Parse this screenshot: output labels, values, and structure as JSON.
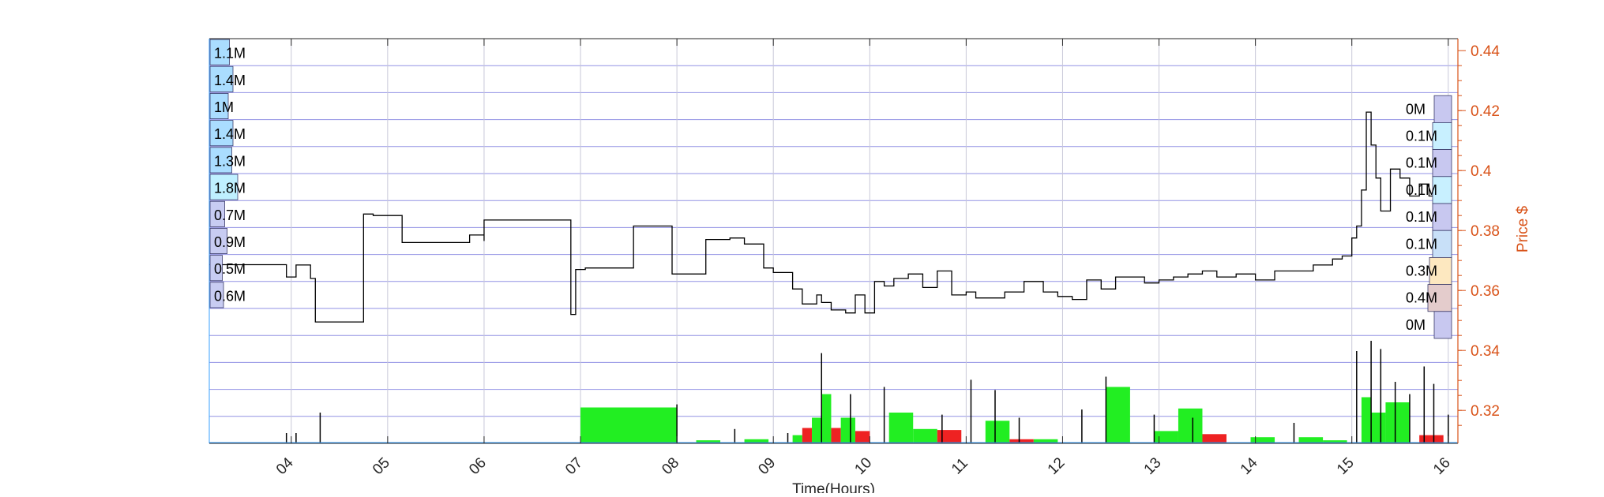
{
  "chart_data": {
    "type": "bar",
    "xlabel": "Time(Hours)",
    "ylabel": "Price $",
    "x_ticks": [
      "04",
      "05",
      "06",
      "07",
      "08",
      "09",
      "10",
      "11",
      "12",
      "13",
      "14",
      "15",
      "16"
    ],
    "xlim": [
      3.15,
      16.1
    ],
    "y_ticks": [
      0.32,
      0.34,
      0.36,
      0.38,
      0.4,
      0.42,
      0.44
    ],
    "ylim": [
      0.309,
      0.444
    ],
    "grid": true,
    "colors": {
      "price": "#000000",
      "up_volume": "#22ee22",
      "down_volume": "#ee2222",
      "price_axis": "#d95319",
      "grid_line": "#8080e0",
      "left_profile": "#aaddff",
      "right_profile": "#c8c8f0"
    },
    "left_volume_profile": {
      "labels": [
        "1.1M",
        "1.4M",
        "1M",
        "1.4M",
        "1.3M",
        "1.8M",
        "0.7M",
        "0.9M",
        "0.5M",
        "0.6M"
      ],
      "values": [
        1.1,
        1.4,
        1.0,
        1.4,
        1.3,
        1.8,
        0.7,
        0.9,
        0.5,
        0.6
      ]
    },
    "right_volume_profile": {
      "labels": [
        "0M",
        "0.1M",
        "0.1M",
        "0.1M",
        "0.1M",
        "0.1M",
        "0.3M",
        "0.4M",
        "0M"
      ],
      "values": [
        0.0,
        0.1,
        0.1,
        0.1,
        0.1,
        0.1,
        0.3,
        0.4,
        0.0
      ],
      "price_from": [
        0.416,
        0.407,
        0.398,
        0.389,
        0.38,
        0.371,
        0.362,
        0.353,
        0.344
      ],
      "price_to": [
        0.425,
        0.416,
        0.407,
        0.398,
        0.389,
        0.38,
        0.371,
        0.362,
        0.353
      ]
    },
    "price_series": {
      "x": [
        3.15,
        3.95,
        3.95,
        4.05,
        4.05,
        4.2,
        4.25,
        4.3,
        4.3,
        4.75,
        4.75,
        4.85,
        4.85,
        5.15,
        5.15,
        5.7,
        5.85,
        6.0,
        6.0,
        6.85,
        6.9,
        6.95,
        7.05,
        7.3,
        7.35,
        7.55,
        7.55,
        7.95,
        7.95,
        8.3,
        8.55,
        8.7,
        8.9,
        9.0,
        9.2,
        9.3,
        9.45,
        9.5,
        9.6,
        9.75,
        9.85,
        9.95,
        10.05,
        10.15,
        10.25,
        10.4,
        10.55,
        10.7,
        10.85,
        11.0,
        11.1,
        11.2,
        11.4,
        11.6,
        11.8,
        11.95,
        12.1,
        12.25,
        12.4,
        12.55,
        12.7,
        12.85,
        13.0,
        13.15,
        13.3,
        13.45,
        13.6,
        13.8,
        14.0,
        14.2,
        14.4,
        14.6,
        14.8,
        14.9,
        15.0,
        15.05,
        15.1,
        15.15,
        15.2,
        15.25,
        15.3,
        15.4,
        15.5,
        15.6,
        15.7,
        15.8,
        15.85,
        15.9
      ],
      "y": [
        0.3686,
        0.3686,
        0.3645,
        0.3645,
        0.3685,
        0.364,
        0.3495,
        0.3495,
        0.3495,
        0.3495,
        0.3855,
        0.3855,
        0.385,
        0.376,
        0.376,
        0.376,
        0.3785,
        0.3765,
        0.3835,
        0.3835,
        0.352,
        0.367,
        0.3675,
        0.3675,
        0.3675,
        0.3675,
        0.3815,
        0.3815,
        0.3655,
        0.377,
        0.3775,
        0.3755,
        0.3675,
        0.366,
        0.3605,
        0.3555,
        0.3585,
        0.356,
        0.3535,
        0.3525,
        0.3585,
        0.3525,
        0.363,
        0.3615,
        0.364,
        0.3655,
        0.361,
        0.3665,
        0.3585,
        0.3595,
        0.3575,
        0.3575,
        0.3595,
        0.363,
        0.3595,
        0.358,
        0.357,
        0.3635,
        0.3605,
        0.3645,
        0.3645,
        0.3625,
        0.3635,
        0.3645,
        0.3655,
        0.3665,
        0.3645,
        0.3655,
        0.3635,
        0.3665,
        0.3665,
        0.3685,
        0.3705,
        0.3715,
        0.3775,
        0.3815,
        0.3935,
        0.4195,
        0.4085,
        0.3975,
        0.3865,
        0.4005,
        0.3975,
        0.3915,
        0.3955,
        0.3915,
        0.3815,
        0.3725
      ]
    },
    "volume_bars": [
      {
        "from": 7.0,
        "to": 8.0,
        "value": 35,
        "direction": "up"
      },
      {
        "from": 8.2,
        "to": 8.45,
        "value": 3,
        "direction": "up"
      },
      {
        "from": 8.7,
        "to": 8.95,
        "value": 4,
        "direction": "up"
      },
      {
        "from": 9.2,
        "to": 9.3,
        "value": 8,
        "direction": "up"
      },
      {
        "from": 9.3,
        "to": 9.4,
        "value": 15,
        "direction": "down"
      },
      {
        "from": 9.4,
        "to": 9.5,
        "value": 25,
        "direction": "up"
      },
      {
        "from": 9.5,
        "to": 9.6,
        "value": 48,
        "direction": "up"
      },
      {
        "from": 9.6,
        "to": 9.7,
        "value": 15,
        "direction": "down"
      },
      {
        "from": 9.7,
        "to": 9.85,
        "value": 25,
        "direction": "up"
      },
      {
        "from": 9.85,
        "to": 10.0,
        "value": 12,
        "direction": "down"
      },
      {
        "from": 10.2,
        "to": 10.45,
        "value": 30,
        "direction": "up"
      },
      {
        "from": 10.45,
        "to": 10.7,
        "value": 14,
        "direction": "up"
      },
      {
        "from": 10.7,
        "to": 10.95,
        "value": 13,
        "direction": "down"
      },
      {
        "from": 11.2,
        "to": 11.45,
        "value": 22,
        "direction": "up"
      },
      {
        "from": 11.45,
        "to": 11.7,
        "value": 4,
        "direction": "down"
      },
      {
        "from": 11.7,
        "to": 11.95,
        "value": 4,
        "direction": "up"
      },
      {
        "from": 12.45,
        "to": 12.7,
        "value": 55,
        "direction": "up"
      },
      {
        "from": 12.95,
        "to": 13.2,
        "value": 12,
        "direction": "up"
      },
      {
        "from": 13.2,
        "to": 13.45,
        "value": 34,
        "direction": "up"
      },
      {
        "from": 13.45,
        "to": 13.7,
        "value": 9,
        "direction": "down"
      },
      {
        "from": 13.95,
        "to": 14.2,
        "value": 6,
        "direction": "up"
      },
      {
        "from": 14.45,
        "to": 14.7,
        "value": 6,
        "direction": "up"
      },
      {
        "from": 14.7,
        "to": 14.95,
        "value": 3,
        "direction": "up"
      },
      {
        "from": 15.1,
        "to": 15.2,
        "value": 45,
        "direction": "up"
      },
      {
        "from": 15.2,
        "to": 15.35,
        "value": 30,
        "direction": "up"
      },
      {
        "from": 15.35,
        "to": 15.6,
        "value": 40,
        "direction": "up"
      },
      {
        "from": 15.7,
        "to": 15.95,
        "value": 8,
        "direction": "down"
      }
    ],
    "volume_spikes": {
      "x": [
        3.95,
        4.05,
        4.3,
        8.0,
        8.6,
        9.15,
        9.5,
        9.8,
        10.15,
        10.75,
        11.05,
        11.3,
        11.55,
        12.2,
        12.45,
        12.95,
        13.35,
        14.4,
        15.05,
        15.2,
        15.3,
        15.45,
        15.6,
        15.75,
        15.85,
        16.0
      ],
      "y": [
        10,
        10,
        30,
        38,
        14,
        10,
        88,
        48,
        55,
        28,
        62,
        52,
        25,
        33,
        65,
        28,
        25,
        20,
        90,
        100,
        92,
        60,
        48,
        75,
        58,
        28
      ]
    },
    "volume_ylim": [
      0,
      100
    ]
  }
}
